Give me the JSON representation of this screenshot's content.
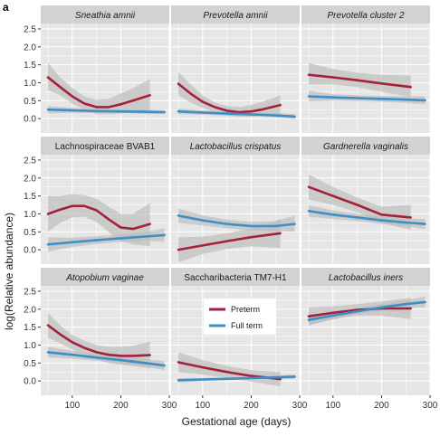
{
  "figure": {
    "panel_letter": "a",
    "xlabel": "Gestational age (days)",
    "ylabel": "log(Relative abundance)"
  },
  "legend": [
    {
      "label": "Preterm",
      "color": "#a3213a"
    },
    {
      "label": "Full term",
      "color": "#3d8fc6"
    }
  ],
  "colors": {
    "panel_bg": "#e6e6e6",
    "strip_bg": "#d2d2d2",
    "grid": "#ffffff",
    "ribbon": "#bdbdbd",
    "preterm": "#a3213a",
    "fullterm": "#3d8fc6"
  },
  "chart_data": {
    "type": "line",
    "layout": "facet-grid 3x3, shared axes",
    "xlim": [
      35,
      300
    ],
    "x_ticks": [
      100,
      200,
      300
    ],
    "x_tick_labels": [
      "100",
      "200",
      "300"
    ],
    "ylim": [
      -0.4,
      2.65
    ],
    "y_ticks": [
      0,
      0.5,
      1,
      1.5,
      2,
      2.5
    ],
    "y_tick_labels": [
      "0.0",
      "0.5",
      "1.0",
      "1.5",
      "2.0",
      "2.5"
    ],
    "grid": true,
    "confidence_bands": true,
    "legend_position": "inside bottom-center panel",
    "panels": [
      {
        "title": "Sneathia amnii",
        "italic": true,
        "series": [
          {
            "name": "Preterm",
            "x": [
              50,
              75,
              100,
              125,
              150,
              175,
              200,
              225,
              260
            ],
            "y": [
              1.15,
              0.88,
              0.62,
              0.42,
              0.32,
              0.32,
              0.4,
              0.5,
              0.65
            ],
            "lower": [
              0.8,
              0.65,
              0.42,
              0.25,
              0.12,
              0.12,
              0.15,
              0.2,
              0.25
            ],
            "upper": [
              1.55,
              1.15,
              0.85,
              0.62,
              0.52,
              0.55,
              0.7,
              0.85,
              1.1
            ]
          },
          {
            "name": "Full term",
            "x": [
              50,
              100,
              150,
              200,
              250,
              290
            ],
            "y": [
              0.25,
              0.23,
              0.21,
              0.2,
              0.19,
              0.18
            ],
            "lower": [
              0.15,
              0.16,
              0.16,
              0.15,
              0.13,
              0.12
            ],
            "upper": [
              0.35,
              0.3,
              0.26,
              0.25,
              0.25,
              0.24
            ]
          }
        ]
      },
      {
        "title": "Prevotella amnii",
        "italic": true,
        "series": [
          {
            "name": "Preterm",
            "x": [
              50,
              75,
              100,
              125,
              150,
              175,
              200,
              225,
              260
            ],
            "y": [
              0.97,
              0.7,
              0.47,
              0.32,
              0.22,
              0.18,
              0.2,
              0.26,
              0.38
            ],
            "lower": [
              0.65,
              0.45,
              0.3,
              0.18,
              0.08,
              0.05,
              0.05,
              0.08,
              0.1
            ],
            "upper": [
              1.3,
              0.95,
              0.65,
              0.45,
              0.35,
              0.32,
              0.38,
              0.48,
              0.65
            ]
          },
          {
            "name": "Full term",
            "x": [
              50,
              100,
              150,
              200,
              250,
              290
            ],
            "y": [
              0.2,
              0.17,
              0.14,
              0.12,
              0.09,
              0.06
            ],
            "lower": [
              0.12,
              0.11,
              0.09,
              0.07,
              0.03,
              -0.01
            ],
            "upper": [
              0.28,
              0.23,
              0.19,
              0.17,
              0.15,
              0.13
            ]
          }
        ]
      },
      {
        "title": "Prevotella cluster 2",
        "italic": true,
        "series": [
          {
            "name": "Preterm",
            "x": [
              50,
              100,
              150,
              200,
              260
            ],
            "y": [
              1.22,
              1.15,
              1.07,
              0.98,
              0.88
            ],
            "lower": [
              0.95,
              0.95,
              0.88,
              0.75,
              0.6
            ],
            "upper": [
              1.55,
              1.38,
              1.28,
              1.22,
              1.2
            ]
          },
          {
            "name": "Full term",
            "x": [
              50,
              100,
              150,
              200,
              250,
              290
            ],
            "y": [
              0.62,
              0.59,
              0.57,
              0.55,
              0.53,
              0.51
            ],
            "lower": [
              0.48,
              0.5,
              0.49,
              0.47,
              0.44,
              0.4
            ],
            "upper": [
              0.78,
              0.68,
              0.65,
              0.63,
              0.62,
              0.62
            ]
          }
        ]
      },
      {
        "title": "Lachnospiraceae BVAB1",
        "italic": false,
        "series": [
          {
            "name": "Preterm",
            "x": [
              50,
              75,
              100,
              125,
              150,
              175,
              200,
              225,
              260
            ],
            "y": [
              1.0,
              1.12,
              1.22,
              1.22,
              1.1,
              0.85,
              0.62,
              0.58,
              0.72
            ],
            "lower": [
              0.5,
              0.75,
              0.9,
              0.92,
              0.78,
              0.5,
              0.25,
              0.15,
              0.1
            ],
            "upper": [
              1.5,
              1.5,
              1.55,
              1.52,
              1.42,
              1.2,
              1.0,
              1.0,
              1.3
            ]
          },
          {
            "name": "Full term",
            "x": [
              50,
              100,
              150,
              200,
              250,
              290
            ],
            "y": [
              0.15,
              0.21,
              0.27,
              0.32,
              0.37,
              0.41
            ],
            "lower": [
              -0.05,
              0.08,
              0.16,
              0.22,
              0.25,
              0.22
            ],
            "upper": [
              0.35,
              0.34,
              0.38,
              0.42,
              0.49,
              0.6
            ]
          }
        ]
      },
      {
        "title": "Lactobacillus crispatus",
        "italic": true,
        "series": [
          {
            "name": "Preterm",
            "x": [
              50,
              100,
              150,
              200,
              260
            ],
            "y": [
              0.0,
              0.12,
              0.24,
              0.35,
              0.46
            ],
            "lower": [
              -0.35,
              -0.12,
              0.02,
              0.1,
              0.05
            ],
            "upper": [
              0.35,
              0.36,
              0.46,
              0.6,
              0.85
            ]
          },
          {
            "name": "Full term",
            "x": [
              50,
              100,
              150,
              200,
              250,
              290
            ],
            "y": [
              0.95,
              0.82,
              0.72,
              0.66,
              0.66,
              0.72
            ],
            "lower": [
              0.75,
              0.68,
              0.6,
              0.54,
              0.52,
              0.5
            ],
            "upper": [
              1.15,
              0.96,
              0.84,
              0.78,
              0.8,
              0.95
            ]
          }
        ]
      },
      {
        "title": "Gardnerella vaginalis",
        "italic": true,
        "series": [
          {
            "name": "Preterm",
            "x": [
              50,
              100,
              150,
              200,
              260
            ],
            "y": [
              1.75,
              1.5,
              1.25,
              0.98,
              0.9
            ],
            "lower": [
              1.4,
              1.25,
              1.05,
              0.75,
              0.55
            ],
            "upper": [
              2.1,
              1.75,
              1.45,
              1.2,
              1.25
            ]
          },
          {
            "name": "Full term",
            "x": [
              50,
              100,
              150,
              200,
              250,
              290
            ],
            "y": [
              1.08,
              0.98,
              0.9,
              0.82,
              0.76,
              0.72
            ],
            "lower": [
              0.92,
              0.86,
              0.8,
              0.72,
              0.65,
              0.58
            ],
            "upper": [
              1.24,
              1.1,
              1.0,
              0.92,
              0.87,
              0.86
            ]
          }
        ]
      },
      {
        "title": "Atopobium vaginae",
        "italic": true,
        "series": [
          {
            "name": "Preterm",
            "x": [
              50,
              75,
              100,
              125,
              150,
              175,
              200,
              225,
              260
            ],
            "y": [
              1.55,
              1.3,
              1.08,
              0.92,
              0.8,
              0.73,
              0.7,
              0.7,
              0.72
            ],
            "lower": [
              1.2,
              1.05,
              0.88,
              0.72,
              0.6,
              0.5,
              0.45,
              0.42,
              0.35
            ],
            "upper": [
              1.9,
              1.55,
              1.28,
              1.12,
              1.0,
              0.95,
              0.95,
              0.98,
              1.1
            ]
          },
          {
            "name": "Full term",
            "x": [
              50,
              100,
              150,
              200,
              250,
              290
            ],
            "y": [
              0.8,
              0.73,
              0.65,
              0.58,
              0.5,
              0.43
            ],
            "lower": [
              0.65,
              0.62,
              0.56,
              0.49,
              0.4,
              0.3
            ],
            "upper": [
              0.95,
              0.84,
              0.74,
              0.67,
              0.6,
              0.56
            ]
          }
        ]
      },
      {
        "title": "Saccharibacteria TM7-H1",
        "italic": false,
        "series": [
          {
            "name": "Preterm",
            "x": [
              50,
              100,
              150,
              200,
              260
            ],
            "y": [
              0.52,
              0.38,
              0.25,
              0.14,
              0.05
            ],
            "lower": [
              0.25,
              0.18,
              0.08,
              -0.02,
              -0.15
            ],
            "upper": [
              0.8,
              0.58,
              0.42,
              0.3,
              0.25
            ]
          },
          {
            "name": "Full term",
            "x": [
              50,
              100,
              150,
              200,
              250,
              290
            ],
            "y": [
              0.02,
              0.04,
              0.06,
              0.08,
              0.1,
              0.12
            ],
            "lower": [
              -0.04,
              0.0,
              0.02,
              0.04,
              0.05,
              0.06
            ],
            "upper": [
              0.08,
              0.08,
              0.1,
              0.12,
              0.15,
              0.18
            ]
          }
        ]
      },
      {
        "title": "Lactobacillus iners",
        "italic": true,
        "series": [
          {
            "name": "Preterm",
            "x": [
              50,
              100,
              150,
              200,
              260
            ],
            "y": [
              1.8,
              1.9,
              1.98,
              2.02,
              2.02
            ],
            "lower": [
              1.55,
              1.72,
              1.82,
              1.82,
              1.72
            ],
            "upper": [
              2.05,
              2.08,
              2.14,
              2.22,
              2.32
            ]
          },
          {
            "name": "Full term",
            "x": [
              50,
              100,
              150,
              200,
              250,
              290
            ],
            "y": [
              1.7,
              1.82,
              1.94,
              2.05,
              2.14,
              2.2
            ],
            "lower": [
              1.55,
              1.72,
              1.86,
              1.96,
              2.03,
              2.05
            ],
            "upper": [
              1.85,
              1.92,
              2.02,
              2.14,
              2.25,
              2.35
            ]
          }
        ]
      }
    ]
  }
}
